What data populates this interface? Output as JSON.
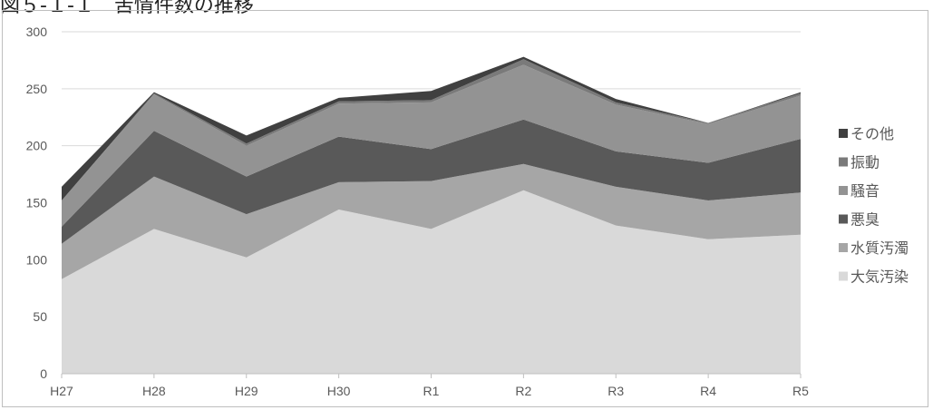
{
  "chart_data": {
    "type": "area",
    "stacked": true,
    "title": "図５-１-１　苦情件数の推移",
    "categories": [
      "H27",
      "H28",
      "H29",
      "H30",
      "R1",
      "R2",
      "R3",
      "R4",
      "R5"
    ],
    "ylim": [
      0,
      300
    ],
    "yticks": [
      0,
      50,
      100,
      150,
      200,
      250,
      300
    ],
    "grid": true,
    "legend_position": "right",
    "series": [
      {
        "name": "大気汚染",
        "color": "#d9d9d9",
        "values": [
          83,
          127,
          102,
          144,
          127,
          161,
          130,
          118,
          122
        ]
      },
      {
        "name": "水質汚濁",
        "color": "#a6a6a6",
        "values": [
          31,
          46,
          38,
          24,
          42,
          23,
          34,
          34,
          37
        ]
      },
      {
        "name": "悪臭",
        "color": "#595959",
        "values": [
          15,
          40,
          33,
          40,
          28,
          39,
          31,
          33,
          47
        ]
      },
      {
        "name": "騒音",
        "color": "#939393",
        "values": [
          23,
          32,
          27,
          29,
          41,
          48,
          41,
          34,
          38
        ]
      },
      {
        "name": "振動",
        "color": "#7a7a7a",
        "values": [
          0,
          1,
          2,
          2,
          2,
          5,
          2,
          1,
          2
        ]
      },
      {
        "name": "その他",
        "color": "#404040",
        "values": [
          12,
          1,
          7,
          3,
          8,
          2,
          3,
          0,
          1
        ]
      }
    ]
  }
}
